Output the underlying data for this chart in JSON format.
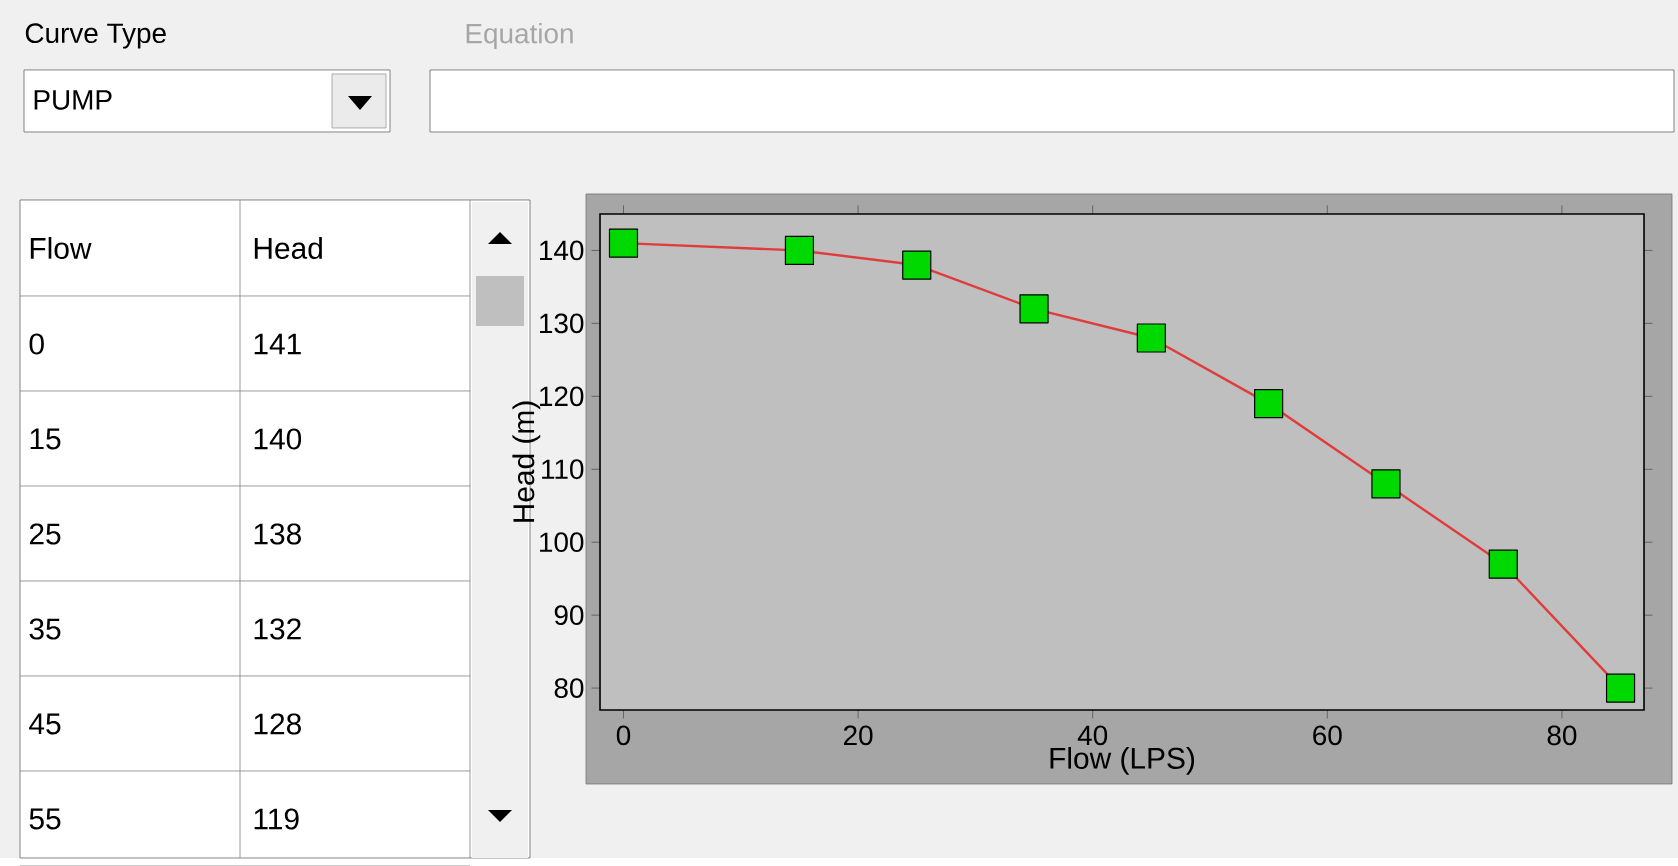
{
  "chart_data": {
    "type": "line",
    "xlabel": "Flow (LPS)",
    "ylabel": "Head (m)",
    "annotations": [
      "Curve Type",
      "Equation",
      "PUMP",
      "Flow",
      "Head",
      "0",
      "141",
      "15",
      "140",
      "25",
      "138",
      "35",
      "132",
      "45",
      "128",
      "55",
      "119"
    ],
    "x": [
      0,
      15,
      25,
      35,
      45,
      55,
      65,
      75,
      85
    ],
    "values": [
      141,
      140,
      138,
      132,
      128,
      119,
      108,
      97,
      80
    ],
    "color": "#e03c3c",
    "marker": "square",
    "xlim": [
      -2,
      87
    ],
    "ylim": [
      77,
      145
    ],
    "xticks": [
      0,
      20,
      40,
      60,
      80
    ],
    "yticks": [
      80,
      90,
      100,
      110,
      120,
      130,
      140
    ]
  }
}
